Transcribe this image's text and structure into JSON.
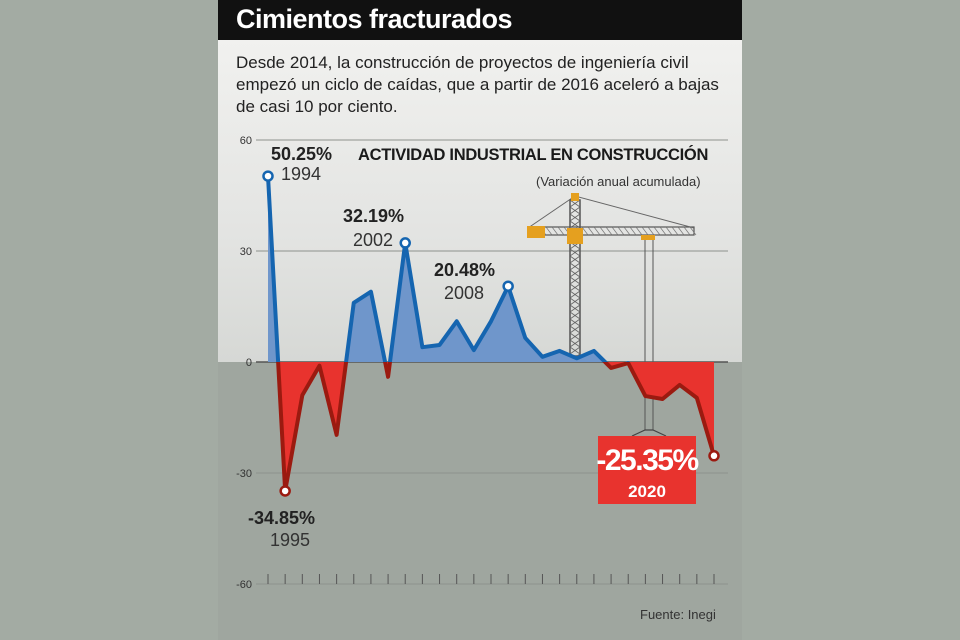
{
  "title": "Cimientos fracturados",
  "subtitle": "Desde 2014, la construcción de proyectos de ingeniería civil empezó un ciclo de caídas, que a partir de 2016 aceleró a bajas de casi 10 por ciento.",
  "source": "Fuente: Inegi",
  "colors": {
    "positive_fill": "#6f96cb",
    "positive_line": "#1565b0",
    "negative_fill": "#e8332e",
    "negative_line": "#9b1a10",
    "highlight_box": "#e8332e"
  },
  "chart_data": {
    "type": "area",
    "title": "ACTIVIDAD INDUSTRIAL EN CONSTRUCCIÓN",
    "subtitle": "(Variación anual acumulada)",
    "xlabel": "",
    "ylabel": "",
    "ylim": [
      -60,
      60
    ],
    "yticks": [
      "60",
      "30",
      "0",
      "-30",
      "-60"
    ],
    "ytick_values": [
      60,
      30,
      0,
      -30,
      -60
    ],
    "grid": true,
    "x": [
      1994,
      1995,
      1996,
      1997,
      1998,
      1999,
      2000,
      2001,
      2002,
      2003,
      2004,
      2005,
      2006,
      2007,
      2008,
      2009,
      2010,
      2011,
      2012,
      2013,
      2014,
      2015,
      2016,
      2017,
      2018,
      2019,
      2020
    ],
    "values": [
      50.25,
      -34.85,
      -9,
      -1,
      -19.7,
      16,
      19,
      -4,
      32.19,
      4,
      4.6,
      11,
      3.2,
      11,
      20.48,
      6.5,
      1.4,
      3,
      1,
      3,
      -1.6,
      -0.3,
      -9.2,
      -10,
      -6.2,
      -9.7,
      -25.35
    ],
    "annotations": [
      {
        "year": 1994,
        "value_label": "50.25%",
        "year_label": "1994"
      },
      {
        "year": 1995,
        "value_label": "-34.85%",
        "year_label": "1995"
      },
      {
        "year": 2002,
        "value_label": "32.19%",
        "year_label": "2002"
      },
      {
        "year": 2008,
        "value_label": "20.48%",
        "year_label": "2008"
      },
      {
        "year": 2020,
        "value_label": "-25.35%",
        "year_label": "2020"
      }
    ]
  }
}
